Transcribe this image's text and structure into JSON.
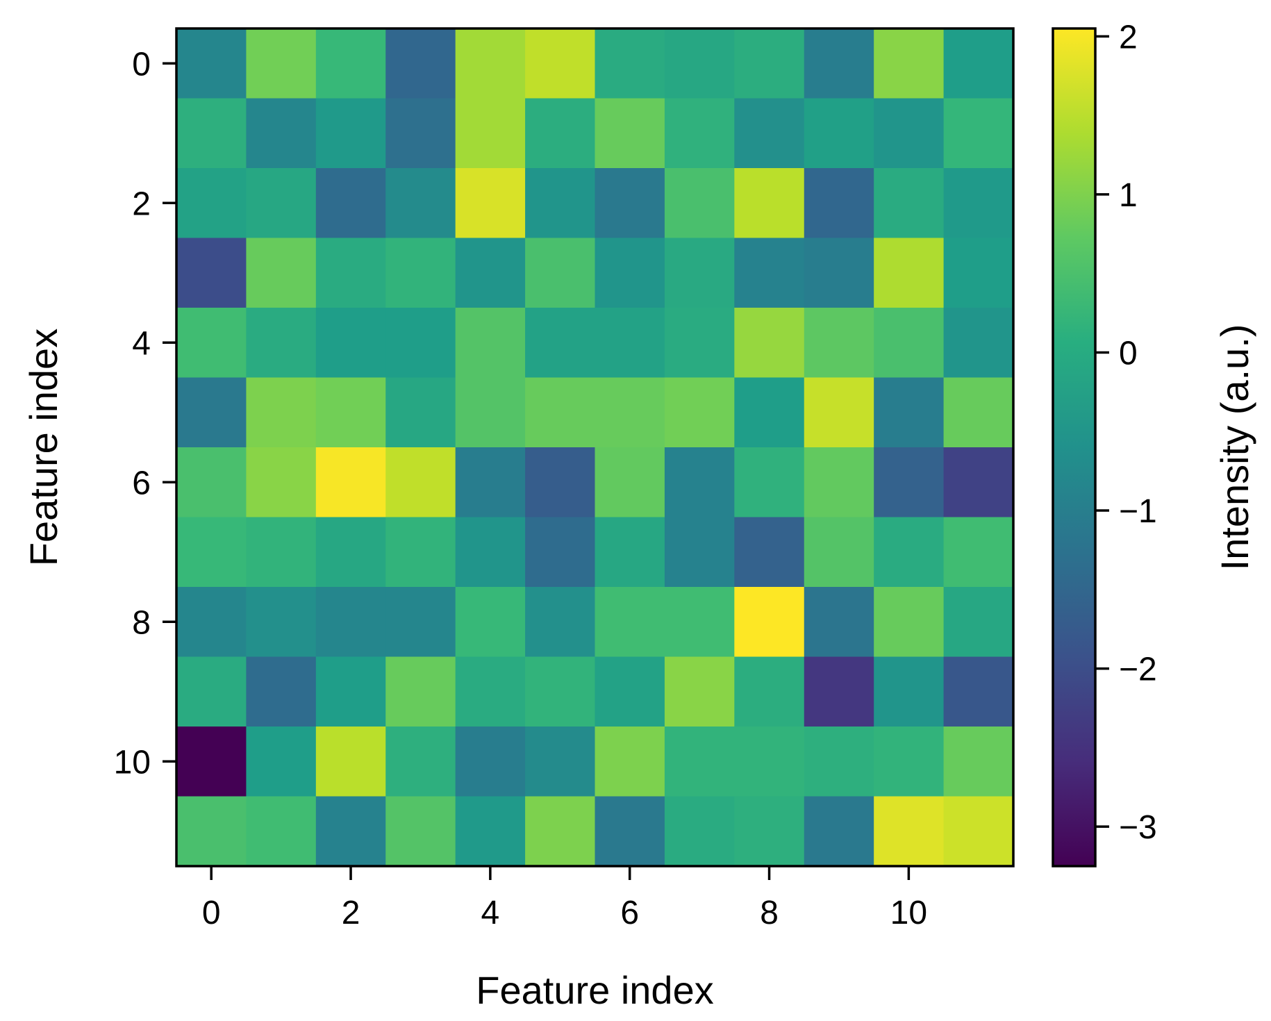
{
  "chart_data": {
    "type": "heatmap",
    "title": "",
    "xlabel": "Feature index",
    "ylabel": "Feature index",
    "x_ticks": [
      0,
      2,
      4,
      6,
      8,
      10
    ],
    "y_ticks": [
      0,
      2,
      4,
      6,
      8,
      10
    ],
    "rows": 12,
    "cols": 12,
    "colormap": "viridis",
    "colorbar": {
      "label": "Intensity (a.u.)",
      "vmin": -3.25,
      "vmax": 2.05,
      "ticks": [
        2,
        1,
        0,
        -1,
        -2,
        -3
      ],
      "tick_labels": [
        "2",
        "1",
        "0",
        "−1",
        "−2",
        "−3"
      ]
    },
    "values": [
      [
        -0.8,
        0.9,
        0.3,
        -1.5,
        1.3,
        1.55,
        0.0,
        -0.1,
        0.05,
        -1.0,
        1.1,
        -0.3
      ],
      [
        0.1,
        -0.8,
        -0.4,
        -1.3,
        1.3,
        0.05,
        0.8,
        0.15,
        -0.6,
        -0.25,
        -0.5,
        0.25
      ],
      [
        -0.2,
        -0.1,
        -1.4,
        -0.7,
        1.75,
        -0.5,
        -1.1,
        0.5,
        1.5,
        -1.5,
        0.0,
        -0.4
      ],
      [
        -2.0,
        0.8,
        0.0,
        0.2,
        -0.5,
        0.5,
        -0.5,
        -0.05,
        -0.9,
        -1.0,
        1.4,
        -0.3
      ],
      [
        0.4,
        0.0,
        -0.3,
        -0.3,
        0.6,
        -0.2,
        -0.2,
        0.0,
        1.2,
        0.7,
        0.5,
        -0.5
      ],
      [
        -1.1,
        1.0,
        0.9,
        -0.1,
        0.6,
        0.8,
        0.8,
        0.9,
        -0.3,
        1.6,
        -1.0,
        0.8
      ],
      [
        0.5,
        1.1,
        2.0,
        1.55,
        -1.0,
        -1.7,
        0.75,
        -0.9,
        0.15,
        0.75,
        -1.6,
        -2.2
      ],
      [
        0.3,
        0.2,
        -0.1,
        0.2,
        -0.5,
        -1.4,
        -0.1,
        -0.9,
        -1.6,
        0.6,
        0.0,
        0.4
      ],
      [
        -0.8,
        -0.6,
        -0.8,
        -0.8,
        0.3,
        -0.6,
        0.4,
        0.4,
        2.05,
        -1.2,
        0.8,
        -0.1
      ],
      [
        0.0,
        -1.4,
        -0.3,
        0.8,
        0.0,
        0.2,
        -0.2,
        1.1,
        0.05,
        -2.4,
        -0.5,
        -1.8
      ],
      [
        -3.25,
        -0.3,
        1.5,
        0.1,
        -1.0,
        -0.7,
        1.0,
        0.2,
        0.2,
        0.1,
        0.2,
        0.8
      ],
      [
        0.5,
        0.4,
        -0.9,
        0.6,
        -0.4,
        1.0,
        -1.1,
        0.0,
        0.1,
        -1.1,
        1.8,
        1.65
      ]
    ]
  }
}
